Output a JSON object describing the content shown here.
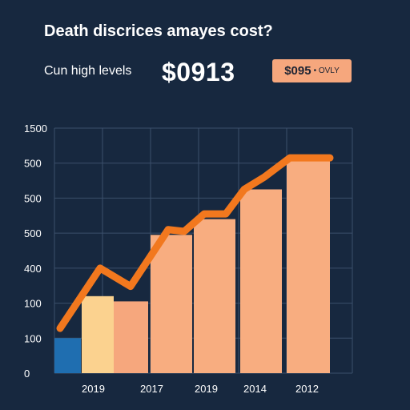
{
  "header": {
    "title": "Death discrices amayes cost?",
    "subtitle": "Cun high levels",
    "big_value": "$0913",
    "badge_amount": "$095",
    "badge_tag": "• OVLY"
  },
  "colors": {
    "background": "#17283f",
    "grid": "#3b4f6b",
    "line": "#f2781e",
    "bars": [
      "#1f6eb0",
      "#fbd28f",
      "#f6a77d",
      "#f8ad80",
      "#f8ad80",
      "#f8ad80",
      "#f8ad80"
    ]
  },
  "chart_data": {
    "type": "bar",
    "title": "",
    "xlabel": "",
    "ylabel": "",
    "y_tick_labels": [
      "0",
      "100",
      "100",
      "400",
      "500",
      "500",
      "500",
      "1500"
    ],
    "x_tick_labels": [
      "2019",
      "2017",
      "2019",
      "2014",
      "2012"
    ],
    "bar_values": [
      1,
      2.2,
      2.05,
      3.95,
      4.4,
      5.25,
      6.1
    ],
    "line_values": [
      1.25,
      3.0,
      2.5,
      4.1,
      4.55,
      5.9,
      6.15
    ],
    "line_x": [
      0.0,
      1.15,
      2.05,
      3.0,
      3.9,
      5.0,
      6.2,
      6.9
    ],
    "line_y": [
      1.25,
      3.0,
      2.5,
      4.1,
      4.05,
      4.55,
      5.9,
      6.15
    ],
    "grid": true
  }
}
